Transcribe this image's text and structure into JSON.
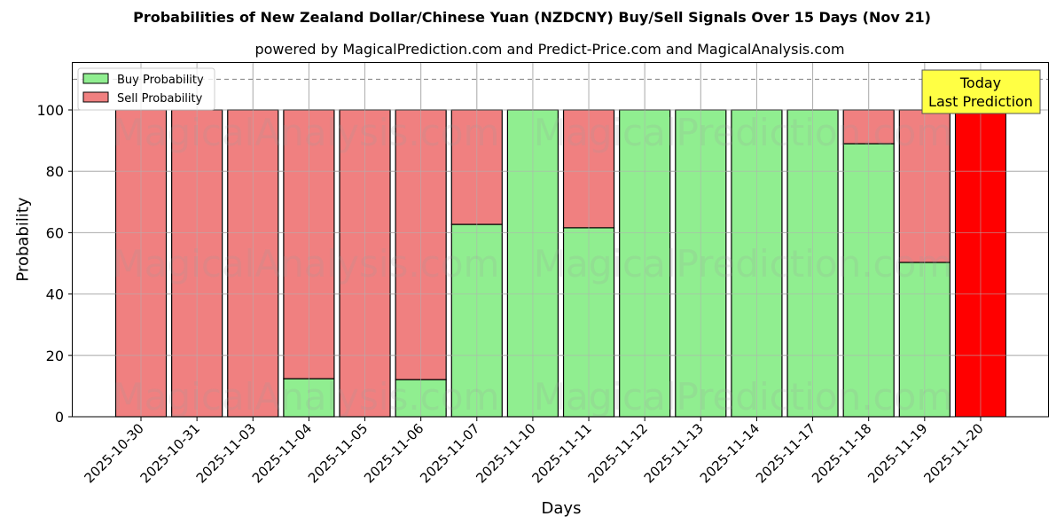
{
  "chart_data": {
    "type": "bar",
    "stacked": true,
    "title": "Probabilities of New Zealand Dollar/Chinese Yuan (NZDCNY) Buy/Sell Signals Over 15 Days (Nov 21)",
    "subtitle": "powered by MagicalPrediction.com and Predict-Price.com and MagicalAnalysis.com",
    "xlabel": "Days",
    "ylabel": "Probability",
    "ylim": [
      0,
      115
    ],
    "yticks": [
      0,
      20,
      40,
      60,
      80,
      100
    ],
    "grid": true,
    "legend_position": "upper left",
    "reference_line": {
      "y": 110,
      "style": "dashed",
      "color": "#808080"
    },
    "categories": [
      "2025-10-30",
      "2025-10-31",
      "2025-11-03",
      "2025-11-04",
      "2025-11-05",
      "2025-11-06",
      "2025-11-07",
      "2025-11-10",
      "2025-11-11",
      "2025-11-12",
      "2025-11-13",
      "2025-11-14",
      "2025-11-17",
      "2025-11-18",
      "2025-11-19",
      "2025-11-20"
    ],
    "series": [
      {
        "name": "Buy Probability",
        "color": "#90ee90",
        "values": [
          0,
          0,
          0,
          12.4,
          0,
          12.1,
          62.7,
          100,
          61.6,
          100,
          100,
          100,
          100,
          89.0,
          50.3,
          0
        ]
      },
      {
        "name": "Sell Probability",
        "color": "#f08080",
        "values": [
          100,
          100,
          100,
          87.6,
          100,
          87.9,
          37.3,
          0,
          38.4,
          0,
          0,
          0,
          0,
          11.0,
          49.7,
          100
        ]
      }
    ],
    "highlight": {
      "index": 15,
      "color": "#ff0000",
      "annotation": "Today\nLast Prediction",
      "annotation_bg": "#ffff44"
    },
    "watermarks": [
      "MagicalAnalysis.com",
      "MagicalPrediction.com"
    ]
  },
  "labels": {
    "title": "Probabilities of New Zealand Dollar/Chinese Yuan (NZDCNY) Buy/Sell Signals Over 15 Days (Nov 21)",
    "subtitle": "powered by MagicalPrediction.com and Predict-Price.com and MagicalAnalysis.com",
    "xlabel": "Days",
    "ylabel": "Probability",
    "legend_buy": "Buy Probability",
    "legend_sell": "Sell Probability",
    "annotation_line1": "Today",
    "annotation_line2": "Last Prediction"
  }
}
